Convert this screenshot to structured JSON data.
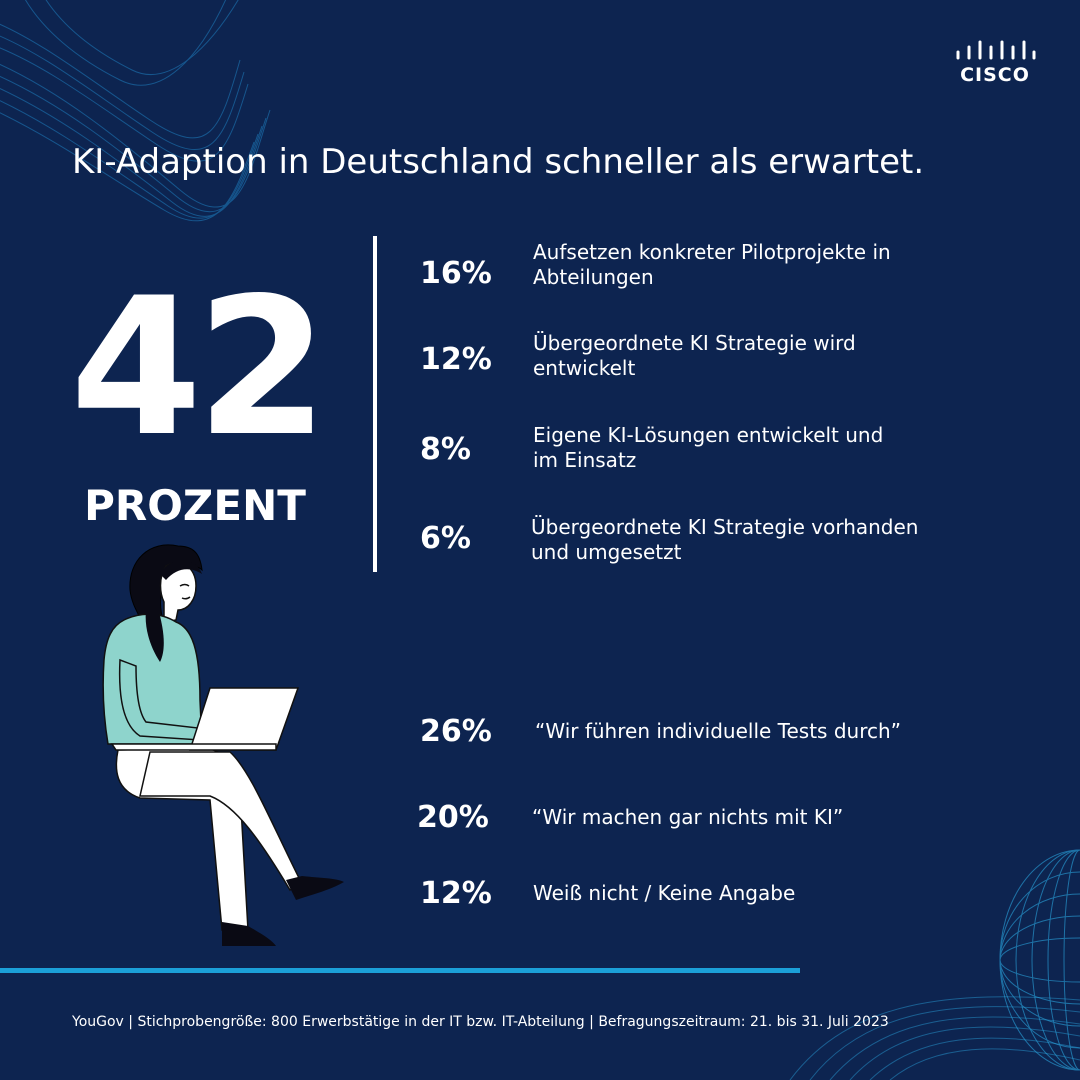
{
  "brand": {
    "logo_text": "CISCO"
  },
  "title": "KI-Adaption in Deutschland schneller als erwartet.",
  "headline_stat": {
    "value": "42",
    "unit_label": "PROZENT"
  },
  "breakdown": [
    {
      "percent": "16%",
      "line1": "Aufsetzen konkreter Pilotprojekte in",
      "line2": "Abteilungen"
    },
    {
      "percent": "12%",
      "line1": "Übergeordnete KI Strategie wird",
      "line2": "entwickelt"
    },
    {
      "percent": "8%",
      "line1": "Eigene KI-Lösungen entwickelt und",
      "line2": "im Einsatz"
    },
    {
      "percent": "6%",
      "line1": "Übergeordnete KI Strategie vorhanden",
      "line2": "und umgesetzt"
    }
  ],
  "other_stats": [
    {
      "percent": "26%",
      "text": "“Wir führen individuelle Tests durch”"
    },
    {
      "percent": "20%",
      "text": "“Wir machen gar nichts mit KI”"
    },
    {
      "percent": "12%",
      "text": "Weiß nicht / Keine Angabe"
    }
  ],
  "footer": "YouGov | Stichprobengröße: 800 Erwerbstätige in der IT bzw. IT-Abteilung | Befragungszeitraum: 21. bis 31. Juli 2023",
  "colors": {
    "background": "#0d2450",
    "accent": "#1ba0d8",
    "text": "#ffffff",
    "shirt": "#8ed4cc"
  },
  "icons": {
    "logo": "cisco-bars-icon",
    "illustration": "woman-with-laptop-illustration"
  }
}
